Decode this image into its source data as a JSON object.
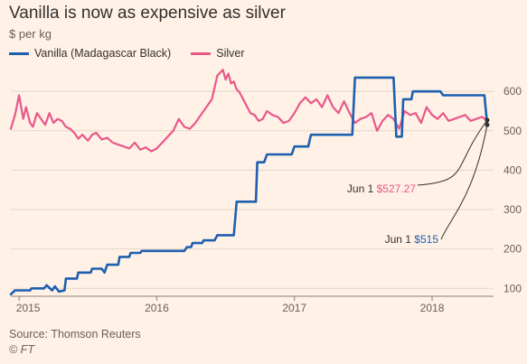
{
  "chart_data": {
    "type": "line",
    "title": "Vanilla is now as expensive as silver",
    "ylabel": "$ per kg",
    "ylim": [
      80,
      660
    ],
    "xlim": [
      2014.94,
      2018.42
    ],
    "yticks": [
      "100",
      "200",
      "300",
      "400",
      "500",
      "600"
    ],
    "xticks": [
      "2015",
      "2016",
      "2017",
      "2018"
    ],
    "grid": true,
    "legend_placement": "top-left",
    "series": [
      {
        "name": "Vanilla (Madagascar Black)",
        "color": "#1f5fb0",
        "x": [
          2014.94,
          2014.97,
          2015.08,
          2015.09,
          2015.18,
          2015.2,
          2015.24,
          2015.26,
          2015.29,
          2015.33,
          2015.34,
          2015.42,
          2015.43,
          2015.52,
          2015.53,
          2015.6,
          2015.62,
          2015.64,
          2015.72,
          2015.73,
          2015.8,
          2015.81,
          2015.88,
          2015.89,
          2015.95,
          2016.0,
          2016.2,
          2016.22,
          2016.25,
          2016.26,
          2016.33,
          2016.34,
          2016.42,
          2016.44,
          2016.56,
          2016.58,
          2016.72,
          2016.73,
          2016.78,
          2016.8,
          2016.98,
          2017.0,
          2017.1,
          2017.12,
          2017.42,
          2017.44,
          2017.72,
          2017.74,
          2017.78,
          2017.79,
          2017.85,
          2017.86,
          2018.06,
          2018.08,
          2018.38,
          2018.4
        ],
        "y": [
          85,
          95,
          95,
          100,
          100,
          108,
          95,
          105,
          92,
          95,
          125,
          125,
          140,
          140,
          150,
          150,
          140,
          160,
          160,
          180,
          180,
          190,
          190,
          195,
          195,
          195,
          195,
          205,
          205,
          215,
          215,
          222,
          222,
          235,
          235,
          320,
          320,
          420,
          420,
          440,
          440,
          460,
          460,
          490,
          490,
          635,
          635,
          485,
          485,
          580,
          580,
          600,
          600,
          590,
          590,
          515
        ]
      },
      {
        "name": "Silver",
        "color": "#e8588b",
        "x": [
          2014.94,
          2014.97,
          2015.0,
          2015.03,
          2015.05,
          2015.08,
          2015.1,
          2015.13,
          2015.16,
          2015.19,
          2015.22,
          2015.25,
          2015.28,
          2015.31,
          2015.34,
          2015.37,
          2015.4,
          2015.43,
          2015.46,
          2015.5,
          2015.53,
          2015.56,
          2015.6,
          2015.64,
          2015.68,
          2015.72,
          2015.76,
          2015.8,
          2015.84,
          2015.88,
          2015.92,
          2015.96,
          2016.0,
          2016.04,
          2016.08,
          2016.12,
          2016.16,
          2016.2,
          2016.24,
          2016.28,
          2016.32,
          2016.36,
          2016.4,
          2016.44,
          2016.48,
          2016.5,
          2016.52,
          2016.54,
          2016.56,
          2016.58,
          2016.6,
          2016.62,
          2016.65,
          2016.68,
          2016.71,
          2016.74,
          2016.77,
          2016.8,
          2016.84,
          2016.88,
          2016.92,
          2016.96,
          2017.0,
          2017.04,
          2017.08,
          2017.12,
          2017.16,
          2017.2,
          2017.24,
          2017.28,
          2017.32,
          2017.36,
          2017.4,
          2017.44,
          2017.48,
          2017.52,
          2017.56,
          2017.6,
          2017.64,
          2017.68,
          2017.72,
          2017.76,
          2017.8,
          2017.84,
          2017.88,
          2017.92,
          2017.96,
          2018.0,
          2018.04,
          2018.08,
          2018.12,
          2018.16,
          2018.2,
          2018.24,
          2018.28,
          2018.32,
          2018.36,
          2018.4
        ],
        "y": [
          505,
          540,
          590,
          530,
          560,
          520,
          510,
          545,
          530,
          515,
          545,
          520,
          530,
          525,
          510,
          505,
          495,
          480,
          490,
          475,
          490,
          495,
          478,
          482,
          470,
          465,
          460,
          455,
          470,
          452,
          458,
          448,
          455,
          470,
          485,
          500,
          530,
          510,
          505,
          520,
          540,
          560,
          580,
          640,
          655,
          630,
          645,
          620,
          625,
          605,
          598,
          585,
          565,
          545,
          540,
          525,
          530,
          550,
          540,
          535,
          520,
          525,
          545,
          570,
          585,
          570,
          580,
          560,
          590,
          560,
          545,
          575,
          545,
          520,
          530,
          535,
          545,
          500,
          525,
          540,
          530,
          505,
          550,
          540,
          545,
          520,
          560,
          540,
          530,
          545,
          525,
          530,
          535,
          540,
          525,
          530,
          535,
          527
        ]
      }
    ],
    "annotations": [
      {
        "prefix": "Jun 1 ",
        "value": "$527.27",
        "color": "#e8588b"
      },
      {
        "prefix": "Jun 1 ",
        "value": "$515",
        "color": "#1f5fb0"
      }
    ]
  },
  "source": "Source: Thomson Reuters",
  "credit": "© FT"
}
